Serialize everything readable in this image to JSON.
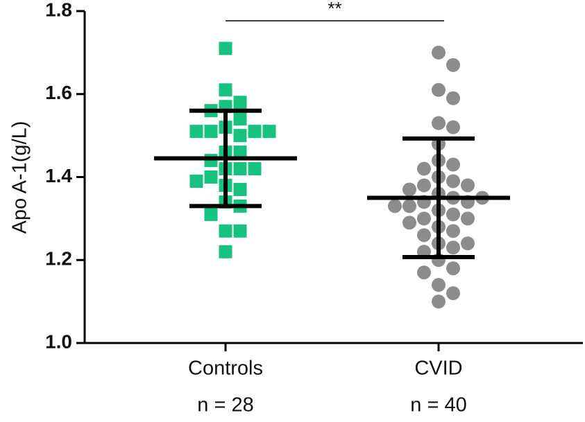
{
  "chart_data": {
    "type": "dot-plot",
    "y_label": "Apo A-1(g/L)",
    "categories": [
      "Controls",
      "CVID"
    ],
    "n_labels": [
      "n = 28",
      "n = 40"
    ],
    "annotation": "**",
    "ylim": [
      1.0,
      1.8
    ],
    "yticks": [
      {
        "value": 1.0,
        "label": "1.0"
      },
      1.2,
      1.4,
      1.6,
      1.8
    ],
    "groups": [
      {
        "marker": "square",
        "color": "#17c27f",
        "mean": 1.445,
        "sd": 0.115,
        "values": [
          1.71,
          1.61,
          1.58,
          1.57,
          1.56,
          1.54,
          1.52,
          1.51,
          1.51,
          1.51,
          1.51,
          1.5,
          1.46,
          1.46,
          1.44,
          1.42,
          1.42,
          1.42,
          1.4,
          1.39,
          1.38,
          1.37,
          1.34,
          1.33,
          1.31,
          1.27,
          1.27,
          1.22
        ]
      },
      {
        "marker": "circle",
        "color": "#8c8c8c",
        "mean": 1.35,
        "sd": 0.143,
        "values": [
          1.7,
          1.67,
          1.61,
          1.59,
          1.53,
          1.52,
          1.48,
          1.44,
          1.43,
          1.42,
          1.4,
          1.39,
          1.38,
          1.38,
          1.37,
          1.36,
          1.35,
          1.35,
          1.34,
          1.34,
          1.33,
          1.33,
          1.32,
          1.31,
          1.3,
          1.3,
          1.29,
          1.28,
          1.27,
          1.26,
          1.24,
          1.24,
          1.23,
          1.22,
          1.2,
          1.18,
          1.17,
          1.14,
          1.12,
          1.1
        ]
      }
    ]
  }
}
